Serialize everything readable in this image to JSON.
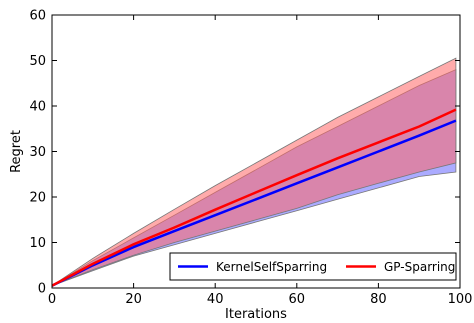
{
  "chart_data": {
    "type": "line",
    "title": "",
    "xlabel": "Iterations",
    "ylabel": "Regret",
    "xlim": [
      0,
      100
    ],
    "ylim": [
      0,
      60
    ],
    "xticks": [
      0,
      20,
      40,
      60,
      80,
      100
    ],
    "yticks": [
      0,
      10,
      20,
      30,
      40,
      50,
      60
    ],
    "xtick_labels": [
      "0",
      "20",
      "40",
      "60",
      "80",
      "100"
    ],
    "ytick_labels": [
      "0",
      "10",
      "20",
      "30",
      "40",
      "50",
      "60"
    ],
    "grid": false,
    "legend_position": "bottom-right",
    "x": [
      0,
      10,
      20,
      30,
      40,
      50,
      60,
      70,
      80,
      90,
      99
    ],
    "series": [
      {
        "name": "KernelSelfSparring",
        "color": "#0000ff",
        "band_color": "#6666ff",
        "mean": [
          0.5,
          5.0,
          9.0,
          12.5,
          16.0,
          19.5,
          23.0,
          26.5,
          30.0,
          33.5,
          36.8
        ],
        "upper": [
          0.5,
          6.0,
          11.0,
          16.0,
          21.0,
          26.0,
          31.0,
          35.5,
          40.0,
          44.5,
          48.0
        ],
        "lower": [
          0.5,
          3.8,
          7.0,
          9.5,
          12.0,
          14.5,
          17.0,
          19.5,
          22.0,
          24.5,
          25.5
        ]
      },
      {
        "name": "GP-Sparring",
        "color": "#ff0000",
        "band_color": "#ff6666",
        "mean": [
          0.5,
          5.3,
          9.6,
          13.3,
          17.2,
          21.0,
          24.8,
          28.5,
          32.0,
          35.5,
          39.2
        ],
        "upper": [
          0.5,
          6.5,
          12.0,
          17.3,
          22.5,
          27.5,
          32.5,
          37.5,
          42.0,
          46.5,
          50.5
        ],
        "lower": [
          0.5,
          4.0,
          7.2,
          10.0,
          12.5,
          15.0,
          17.5,
          20.5,
          23.0,
          25.5,
          27.5
        ]
      }
    ]
  }
}
